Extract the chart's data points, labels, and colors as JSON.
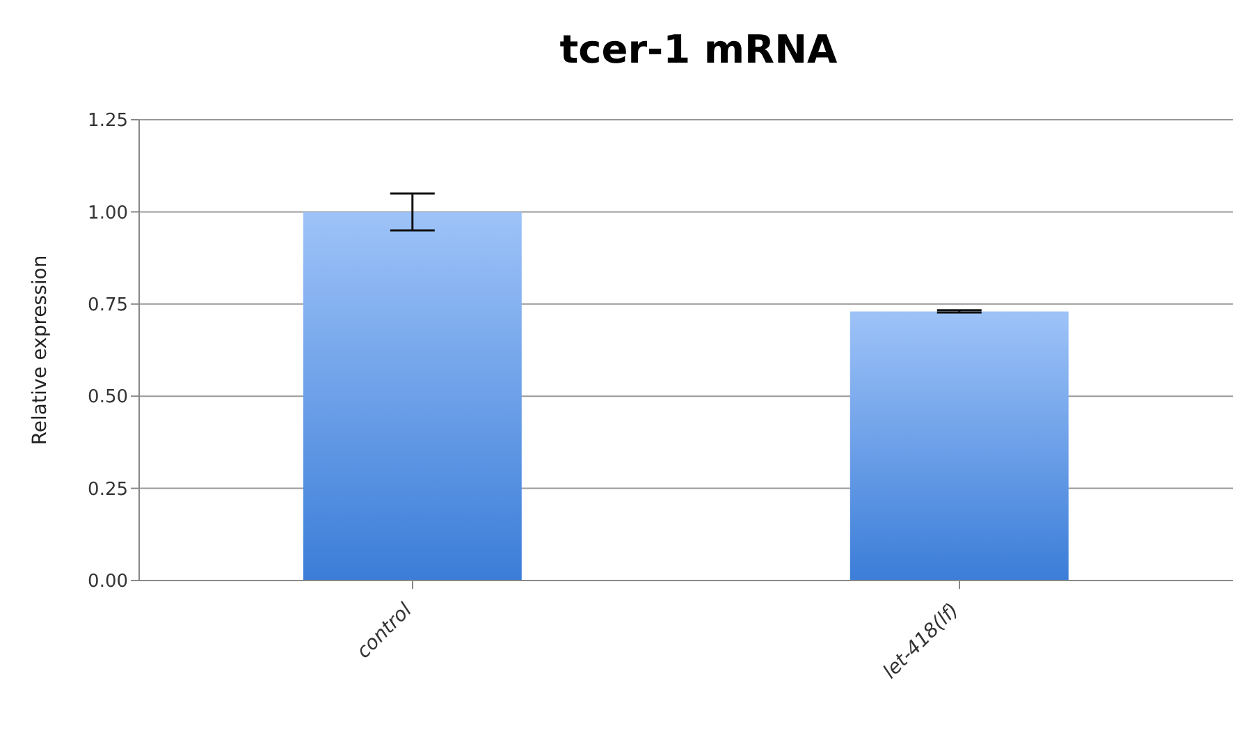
{
  "chart_data": {
    "type": "bar",
    "title": "tcer-1 mRNA",
    "ylabel": "Relative expression",
    "categories": [
      "control",
      "let-418(lf)"
    ],
    "values": [
      1.0,
      0.73
    ],
    "errors": [
      0.05,
      0.003
    ],
    "color": "#3b7dd8",
    "ylim": [
      0,
      1.25
    ],
    "yticks": [
      {
        "value": 0,
        "label": "0.00"
      },
      {
        "value": 0.25,
        "label": "0.25"
      },
      {
        "value": 0.5,
        "label": "0.50"
      },
      {
        "value": 0.75,
        "label": "0.75"
      },
      {
        "value": 1,
        "label": "1.00"
      },
      {
        "value": 1.25,
        "label": "1.25"
      }
    ],
    "grid": "y",
    "legend": false
  }
}
